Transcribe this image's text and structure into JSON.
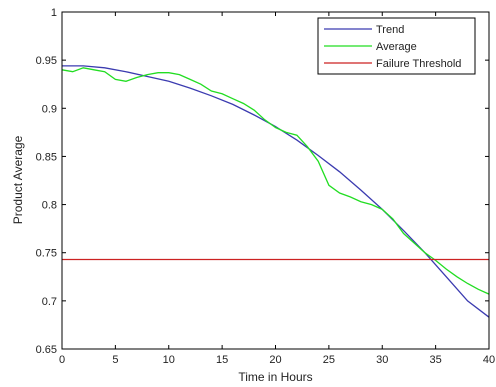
{
  "chart_data": {
    "type": "line",
    "title": "",
    "xlabel": "Time in Hours",
    "ylabel": "Product Average",
    "xlim": [
      0,
      40
    ],
    "ylim": [
      0.65,
      1
    ],
    "xticks": [
      0,
      5,
      10,
      15,
      20,
      25,
      30,
      35,
      40
    ],
    "xtick_labels": [
      "0",
      "5",
      "10",
      "15",
      "20",
      "25",
      "30",
      "35",
      "40"
    ],
    "yticks": [
      0.65,
      0.7,
      0.75,
      0.8,
      0.85,
      0.9,
      0.95,
      1
    ],
    "ytick_labels": [
      "0.65",
      "0.7",
      "0.75",
      "0.8",
      "0.85",
      "0.9",
      "0.95",
      "1"
    ],
    "grid": false,
    "legend_position": "top-right",
    "series": [
      {
        "name": "Trend",
        "color": "#3b3bb0",
        "x": [
          0,
          2,
          4,
          6,
          8,
          10,
          12,
          14,
          16,
          18,
          20,
          22,
          24,
          26,
          28,
          30,
          32,
          34,
          36,
          38,
          40
        ],
        "y": [
          0.944,
          0.944,
          0.942,
          0.938,
          0.933,
          0.928,
          0.921,
          0.913,
          0.904,
          0.893,
          0.881,
          0.867,
          0.851,
          0.834,
          0.815,
          0.795,
          0.773,
          0.75,
          0.725,
          0.7,
          0.683
        ]
      },
      {
        "name": "Average",
        "color": "#22dd22",
        "x": [
          0,
          1,
          2,
          3,
          4,
          5,
          6,
          7,
          8,
          9,
          10,
          11,
          12,
          13,
          14,
          15,
          16,
          17,
          18,
          19,
          20,
          21,
          22,
          23,
          24,
          25,
          26,
          27,
          28,
          29,
          30,
          31,
          32,
          33,
          34,
          35,
          36,
          37,
          38,
          39,
          40
        ],
        "y": [
          0.94,
          0.938,
          0.942,
          0.94,
          0.938,
          0.93,
          0.928,
          0.932,
          0.935,
          0.937,
          0.937,
          0.935,
          0.93,
          0.925,
          0.918,
          0.915,
          0.91,
          0.905,
          0.898,
          0.888,
          0.88,
          0.875,
          0.872,
          0.86,
          0.845,
          0.82,
          0.812,
          0.808,
          0.803,
          0.8,
          0.795,
          0.785,
          0.77,
          0.76,
          0.75,
          0.742,
          0.733,
          0.725,
          0.718,
          0.712,
          0.707
        ]
      },
      {
        "name": "Failure Threshold",
        "color": "#cc2222",
        "x": [
          0,
          40
        ],
        "y": [
          0.743,
          0.743
        ]
      }
    ]
  }
}
